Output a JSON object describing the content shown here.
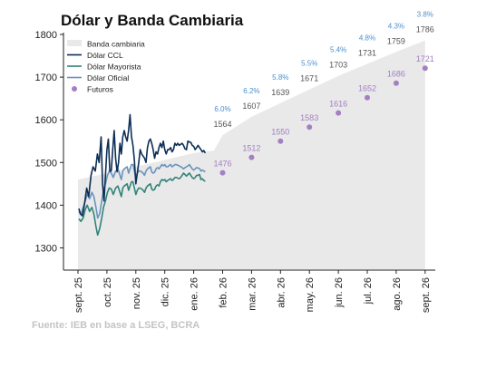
{
  "chart_data": {
    "type": "line",
    "title": "Dólar y Banda Cambiaria",
    "source": "Fuente: IEB en base a LSEG, BCRA",
    "ylim": [
      1250,
      1800
    ],
    "y_ticks": [
      1300,
      1400,
      1500,
      1600,
      1700,
      1800
    ],
    "x_ticks": [
      "sept. 25",
      "oct. 25",
      "nov. 25",
      "dic. 25",
      "ene. 26",
      "feb. 26",
      "mar. 26",
      "abr. 26",
      "may. 26",
      "jun. 26",
      "jul. 26",
      "ago. 26",
      "sept. 26"
    ],
    "grid": false,
    "legend_position": "top-left",
    "legend": [
      "Banda cambiaria",
      "Dólar CCL",
      "Dólar Mayorista",
      "Dólar Oficial",
      "Futuros"
    ],
    "colors": {
      "band": "#e9e9e9",
      "ccl": "#0d2e55",
      "mayorista": "#2f8479",
      "oficial": "#6a93bd",
      "futuros": "#a47fc4",
      "band_label": "#555555",
      "pct_label": "#4a8fd0",
      "source": "#c4c4c4"
    },
    "band_upper": [
      {
        "x": 0,
        "y": 1460
      },
      {
        "x": 2,
        "y": 1490
      },
      {
        "x": 4,
        "y": 1522
      },
      {
        "x": 4.7,
        "y": 1528
      },
      {
        "x": 5,
        "y": 1564
      },
      {
        "x": 6,
        "y": 1607
      },
      {
        "x": 7,
        "y": 1639
      },
      {
        "x": 8,
        "y": 1671
      },
      {
        "x": 9,
        "y": 1703
      },
      {
        "x": 10,
        "y": 1731
      },
      {
        "x": 11,
        "y": 1759
      },
      {
        "x": 12,
        "y": 1786
      }
    ],
    "band_labels": [
      {
        "x": 5,
        "value": "1564",
        "pct": "6.0%"
      },
      {
        "x": 6,
        "value": "1607",
        "pct": "6.2%"
      },
      {
        "x": 7,
        "value": "1639",
        "pct": "5.8%"
      },
      {
        "x": 8,
        "value": "1671",
        "pct": "5.5%"
      },
      {
        "x": 9,
        "value": "1703",
        "pct": "5.4%"
      },
      {
        "x": 10,
        "value": "1731",
        "pct": "4.8%"
      },
      {
        "x": 11,
        "value": "1759",
        "pct": "4.3%"
      },
      {
        "x": 12,
        "value": "1786",
        "pct": "3.8%"
      }
    ],
    "futuros": [
      {
        "x": 5,
        "y": 1476
      },
      {
        "x": 6,
        "y": 1512
      },
      {
        "x": 7,
        "y": 1550
      },
      {
        "x": 8,
        "y": 1583
      },
      {
        "x": 9,
        "y": 1616
      },
      {
        "x": 10,
        "y": 1652
      },
      {
        "x": 11,
        "y": 1686
      },
      {
        "x": 12,
        "y": 1721
      }
    ],
    "series": [
      {
        "name": "Dólar CCL",
        "points": [
          [
            0.03,
            1392
          ],
          [
            0.08,
            1380
          ],
          [
            0.15,
            1375
          ],
          [
            0.22,
            1400
          ],
          [
            0.3,
            1440
          ],
          [
            0.37,
            1420
          ],
          [
            0.45,
            1470
          ],
          [
            0.52,
            1490
          ],
          [
            0.6,
            1480
          ],
          [
            0.67,
            1520
          ],
          [
            0.73,
            1500
          ],
          [
            0.8,
            1560
          ],
          [
            0.85,
            1450
          ],
          [
            0.9,
            1410
          ],
          [
            0.95,
            1470
          ],
          [
            1.0,
            1530
          ],
          [
            1.05,
            1555
          ],
          [
            1.1,
            1480
          ],
          [
            1.15,
            1480
          ],
          [
            1.2,
            1530
          ],
          [
            1.25,
            1575
          ],
          [
            1.3,
            1510
          ],
          [
            1.35,
            1478
          ],
          [
            1.4,
            1500
          ],
          [
            1.45,
            1545
          ],
          [
            1.5,
            1520
          ],
          [
            1.55,
            1560
          ],
          [
            1.6,
            1575
          ],
          [
            1.65,
            1560
          ],
          [
            1.7,
            1550
          ],
          [
            1.75,
            1575
          ],
          [
            1.8,
            1612
          ],
          [
            1.85,
            1560
          ],
          [
            1.9,
            1540
          ],
          [
            1.95,
            1505
          ],
          [
            2.0,
            1450
          ],
          [
            2.05,
            1475
          ],
          [
            2.1,
            1500
          ],
          [
            2.15,
            1530
          ],
          [
            2.2,
            1520
          ],
          [
            2.25,
            1515
          ],
          [
            2.3,
            1510
          ],
          [
            2.35,
            1500
          ],
          [
            2.4,
            1535
          ],
          [
            2.45,
            1550
          ],
          [
            2.5,
            1555
          ],
          [
            2.55,
            1545
          ],
          [
            2.6,
            1530
          ],
          [
            2.65,
            1510
          ],
          [
            2.7,
            1525
          ],
          [
            2.75,
            1520
          ],
          [
            2.8,
            1535
          ],
          [
            2.85,
            1545
          ],
          [
            2.9,
            1535
          ],
          [
            2.95,
            1550
          ],
          [
            3.0,
            1530
          ],
          [
            3.05,
            1520
          ],
          [
            3.1,
            1530
          ],
          [
            3.15,
            1530
          ],
          [
            3.2,
            1535
          ],
          [
            3.25,
            1525
          ],
          [
            3.3,
            1530
          ],
          [
            3.35,
            1545
          ],
          [
            3.4,
            1540
          ],
          [
            3.45,
            1545
          ],
          [
            3.5,
            1540
          ],
          [
            3.6,
            1545
          ],
          [
            3.65,
            1540
          ],
          [
            3.7,
            1532
          ],
          [
            3.75,
            1530
          ],
          [
            3.8,
            1550
          ],
          [
            3.85,
            1548
          ],
          [
            3.9,
            1547
          ],
          [
            3.95,
            1540
          ],
          [
            4.0,
            1538
          ],
          [
            4.05,
            1530
          ],
          [
            4.1,
            1535
          ],
          [
            4.15,
            1540
          ],
          [
            4.2,
            1535
          ],
          [
            4.25,
            1530
          ],
          [
            4.3,
            1525
          ],
          [
            4.35,
            1528
          ],
          [
            4.4,
            1522
          ]
        ]
      },
      {
        "name": "Dólar Mayorista",
        "points": [
          [
            0.03,
            1368
          ],
          [
            0.1,
            1362
          ],
          [
            0.18,
            1370
          ],
          [
            0.25,
            1390
          ],
          [
            0.32,
            1400
          ],
          [
            0.4,
            1385
          ],
          [
            0.48,
            1395
          ],
          [
            0.55,
            1380
          ],
          [
            0.62,
            1350
          ],
          [
            0.68,
            1330
          ],
          [
            0.75,
            1345
          ],
          [
            0.82,
            1370
          ],
          [
            0.88,
            1395
          ],
          [
            0.95,
            1410
          ],
          [
            1.02,
            1430
          ],
          [
            1.08,
            1440
          ],
          [
            1.15,
            1438
          ],
          [
            1.22,
            1425
          ],
          [
            1.3,
            1440
          ],
          [
            1.38,
            1445
          ],
          [
            1.45,
            1430
          ],
          [
            1.5,
            1420
          ],
          [
            1.55,
            1440
          ],
          [
            1.6,
            1445
          ],
          [
            1.7,
            1450
          ],
          [
            1.75,
            1435
          ],
          [
            1.8,
            1445
          ],
          [
            1.85,
            1455
          ],
          [
            1.9,
            1455
          ],
          [
            1.95,
            1440
          ],
          [
            2.0,
            1425
          ],
          [
            2.05,
            1435
          ],
          [
            2.1,
            1440
          ],
          [
            2.15,
            1440
          ],
          [
            2.2,
            1438
          ],
          [
            2.25,
            1435
          ],
          [
            2.3,
            1430
          ],
          [
            2.35,
            1440
          ],
          [
            2.4,
            1445
          ],
          [
            2.5,
            1450
          ],
          [
            2.55,
            1438
          ],
          [
            2.6,
            1435
          ],
          [
            2.65,
            1437
          ],
          [
            2.7,
            1445
          ],
          [
            2.75,
            1448
          ],
          [
            2.8,
            1445
          ],
          [
            2.85,
            1455
          ],
          [
            2.9,
            1460
          ],
          [
            2.95,
            1458
          ],
          [
            3.0,
            1460
          ],
          [
            3.05,
            1455
          ],
          [
            3.1,
            1458
          ],
          [
            3.15,
            1460
          ],
          [
            3.2,
            1462
          ],
          [
            3.25,
            1458
          ],
          [
            3.3,
            1460
          ],
          [
            3.35,
            1465
          ],
          [
            3.4,
            1465
          ],
          [
            3.5,
            1462
          ],
          [
            3.55,
            1465
          ],
          [
            3.6,
            1470
          ],
          [
            3.65,
            1475
          ],
          [
            3.7,
            1472
          ],
          [
            3.75,
            1468
          ],
          [
            3.8,
            1472
          ],
          [
            3.85,
            1475
          ],
          [
            3.9,
            1470
          ],
          [
            3.95,
            1465
          ],
          [
            4.0,
            1462
          ],
          [
            4.05,
            1465
          ],
          [
            4.1,
            1470
          ],
          [
            4.15,
            1470
          ],
          [
            4.2,
            1472
          ],
          [
            4.25,
            1460
          ],
          [
            4.3,
            1462
          ],
          [
            4.35,
            1458
          ],
          [
            4.4,
            1456
          ]
        ]
      },
      {
        "name": "Dólar Oficial",
        "points": [
          [
            0.03,
            1385
          ],
          [
            0.1,
            1378
          ],
          [
            0.18,
            1395
          ],
          [
            0.25,
            1410
          ],
          [
            0.32,
            1425
          ],
          [
            0.4,
            1415
          ],
          [
            0.48,
            1430
          ],
          [
            0.55,
            1420
          ],
          [
            0.62,
            1395
          ],
          [
            0.68,
            1370
          ],
          [
            0.75,
            1380
          ],
          [
            0.82,
            1410
          ],
          [
            0.88,
            1435
          ],
          [
            0.95,
            1450
          ],
          [
            1.02,
            1470
          ],
          [
            1.08,
            1480
          ],
          [
            1.15,
            1475
          ],
          [
            1.22,
            1465
          ],
          [
            1.3,
            1480
          ],
          [
            1.38,
            1485
          ],
          [
            1.45,
            1470
          ],
          [
            1.5,
            1460
          ],
          [
            1.55,
            1480
          ],
          [
            1.6,
            1485
          ],
          [
            1.7,
            1490
          ],
          [
            1.75,
            1475
          ],
          [
            1.8,
            1485
          ],
          [
            1.85,
            1495
          ],
          [
            1.9,
            1495
          ],
          [
            1.95,
            1480
          ],
          [
            2.0,
            1465
          ],
          [
            2.05,
            1475
          ],
          [
            2.1,
            1480
          ],
          [
            2.15,
            1480
          ],
          [
            2.2,
            1478
          ],
          [
            2.25,
            1475
          ],
          [
            2.3,
            1470
          ],
          [
            2.35,
            1480
          ],
          [
            2.4,
            1485
          ],
          [
            2.5,
            1490
          ],
          [
            2.55,
            1478
          ],
          [
            2.6,
            1475
          ],
          [
            2.65,
            1477
          ],
          [
            2.7,
            1485
          ],
          [
            2.75,
            1488
          ],
          [
            2.8,
            1485
          ],
          [
            2.85,
            1490
          ],
          [
            2.9,
            1495
          ],
          [
            2.95,
            1492
          ],
          [
            3.0,
            1495
          ],
          [
            3.05,
            1490
          ],
          [
            3.1,
            1490
          ],
          [
            3.15,
            1493
          ],
          [
            3.2,
            1495
          ],
          [
            3.25,
            1490
          ],
          [
            3.3,
            1492
          ],
          [
            3.35,
            1495
          ],
          [
            3.4,
            1495
          ],
          [
            3.5,
            1492
          ],
          [
            3.55,
            1490
          ],
          [
            3.6,
            1488
          ],
          [
            3.65,
            1485
          ],
          [
            3.7,
            1488
          ],
          [
            3.75,
            1490
          ],
          [
            3.8,
            1492
          ],
          [
            3.85,
            1495
          ],
          [
            3.9,
            1490
          ],
          [
            3.95,
            1485
          ],
          [
            4.0,
            1482
          ],
          [
            4.05,
            1485
          ],
          [
            4.1,
            1488
          ],
          [
            4.15,
            1487
          ],
          [
            4.2,
            1486
          ],
          [
            4.25,
            1480
          ],
          [
            4.3,
            1482
          ],
          [
            4.35,
            1480
          ],
          [
            4.4,
            1478
          ]
        ]
      }
    ]
  }
}
